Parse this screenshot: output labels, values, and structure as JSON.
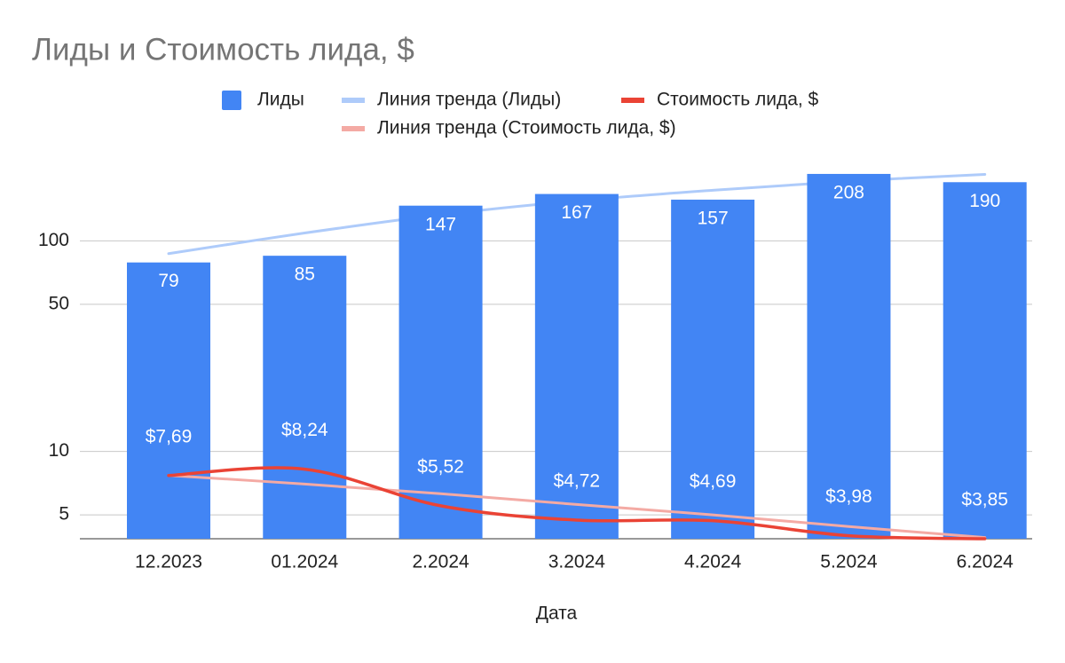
{
  "chart_data": {
    "type": "combo",
    "title": "Лиды и Стоимость лида, $",
    "x_label": "Дата",
    "categories": [
      "12.2023",
      "01.2024",
      "2.2024",
      "3.2024",
      "4.2024",
      "5.2024",
      "6.2024"
    ],
    "y_scale": "log",
    "ylim": [
      3.85,
      250
    ],
    "yticks": [
      5,
      10,
      50,
      100
    ],
    "grid": true,
    "series": [
      {
        "name": "Лиды",
        "type": "bar",
        "color": "#4285f4",
        "values": [
          79,
          85,
          147,
          167,
          157,
          208,
          190
        ]
      },
      {
        "name": "Линия тренда (Лиды)",
        "type": "trendline",
        "color": "#aecbfa",
        "values": [
          87,
          109,
          133,
          155,
          174,
          192,
          207
        ]
      },
      {
        "name": "Стоимость лида, $",
        "type": "line",
        "color": "#ea4335",
        "values": [
          7.69,
          8.24,
          5.52,
          4.72,
          4.69,
          3.98,
          3.85
        ],
        "value_labels": [
          "$7,69",
          "$8,24",
          "$5,52",
          "$4,72",
          "$4,69",
          "$3,98",
          "$3,85"
        ]
      },
      {
        "name": "Линия тренда (Стоимость лида, $)",
        "type": "trendline",
        "color": "#f4aaa4",
        "values": [
          7.7,
          7.0,
          6.3,
          5.6,
          5.0,
          4.4,
          3.9
        ]
      }
    ]
  }
}
